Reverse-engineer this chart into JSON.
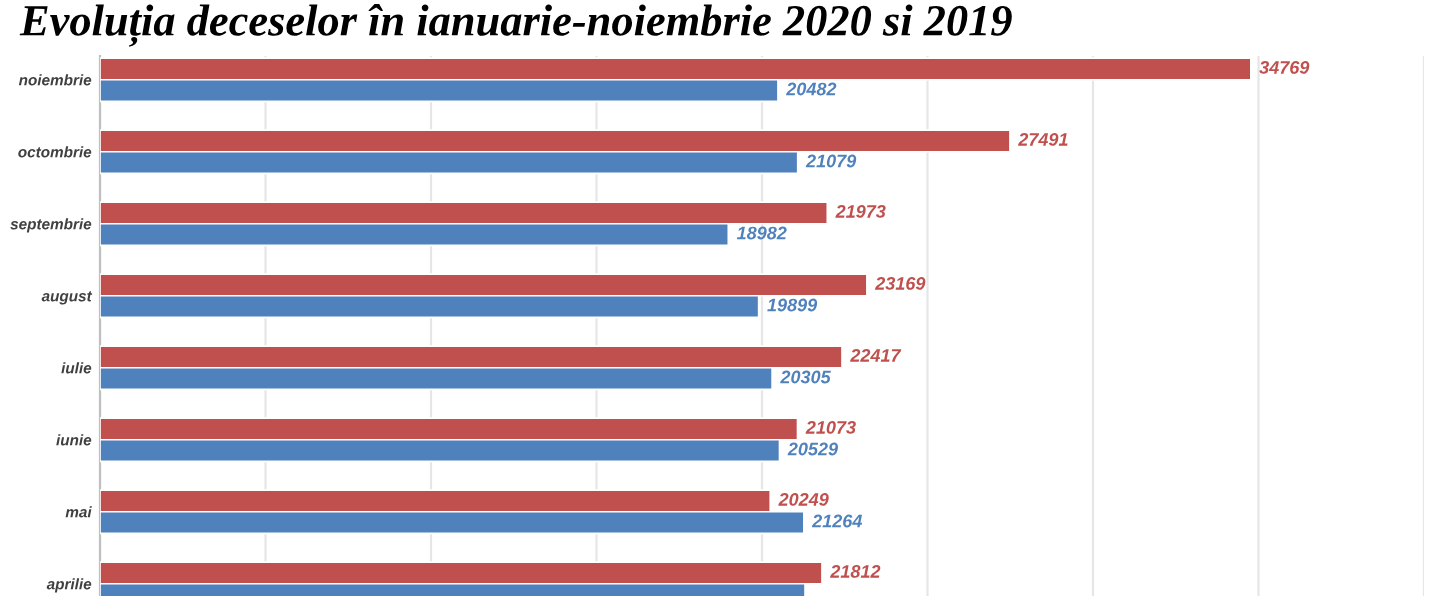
{
  "chart_data": {
    "type": "bar",
    "orientation": "horizontal",
    "title": "Evoluția deceselor în ianuarie-noiembrie 2020 si 2019",
    "categories": [
      "noiembrie",
      "octombrie",
      "septembrie",
      "august",
      "iulie",
      "iunie",
      "mai",
      "aprilie"
    ],
    "series": [
      {
        "color": "#c0504d",
        "values": [
          34769,
          27491,
          21973,
          23169,
          22417,
          21073,
          20249,
          21812
        ],
        "value_labels": [
          "34769",
          "27491",
          "21973",
          "23169",
          "22417",
          "21073",
          "20249",
          "21812"
        ]
      },
      {
        "color": "#4f81bd",
        "values": [
          20482,
          21079,
          18982,
          19899,
          20305,
          20529,
          21264,
          21300
        ],
        "value_labels": [
          "20482",
          "21079",
          "18982",
          "19899",
          "20305",
          "20529",
          "21264",
          null
        ]
      }
    ],
    "xlim": [
      0,
      40000
    ],
    "xticks": [
      {
        "value": 0,
        "label": null
      },
      {
        "value": 5000,
        "label": null
      },
      {
        "value": 10000,
        "label": null
      },
      {
        "value": 15000,
        "label": null
      },
      {
        "value": 20000,
        "label": null
      },
      {
        "value": 25000,
        "label": null
      },
      {
        "value": 30000,
        "label": null
      },
      {
        "value": 35000,
        "label": null
      },
      {
        "value": 40000,
        "label": null
      }
    ],
    "grid": "x",
    "tick_labels": "y",
    "legend": false
  }
}
